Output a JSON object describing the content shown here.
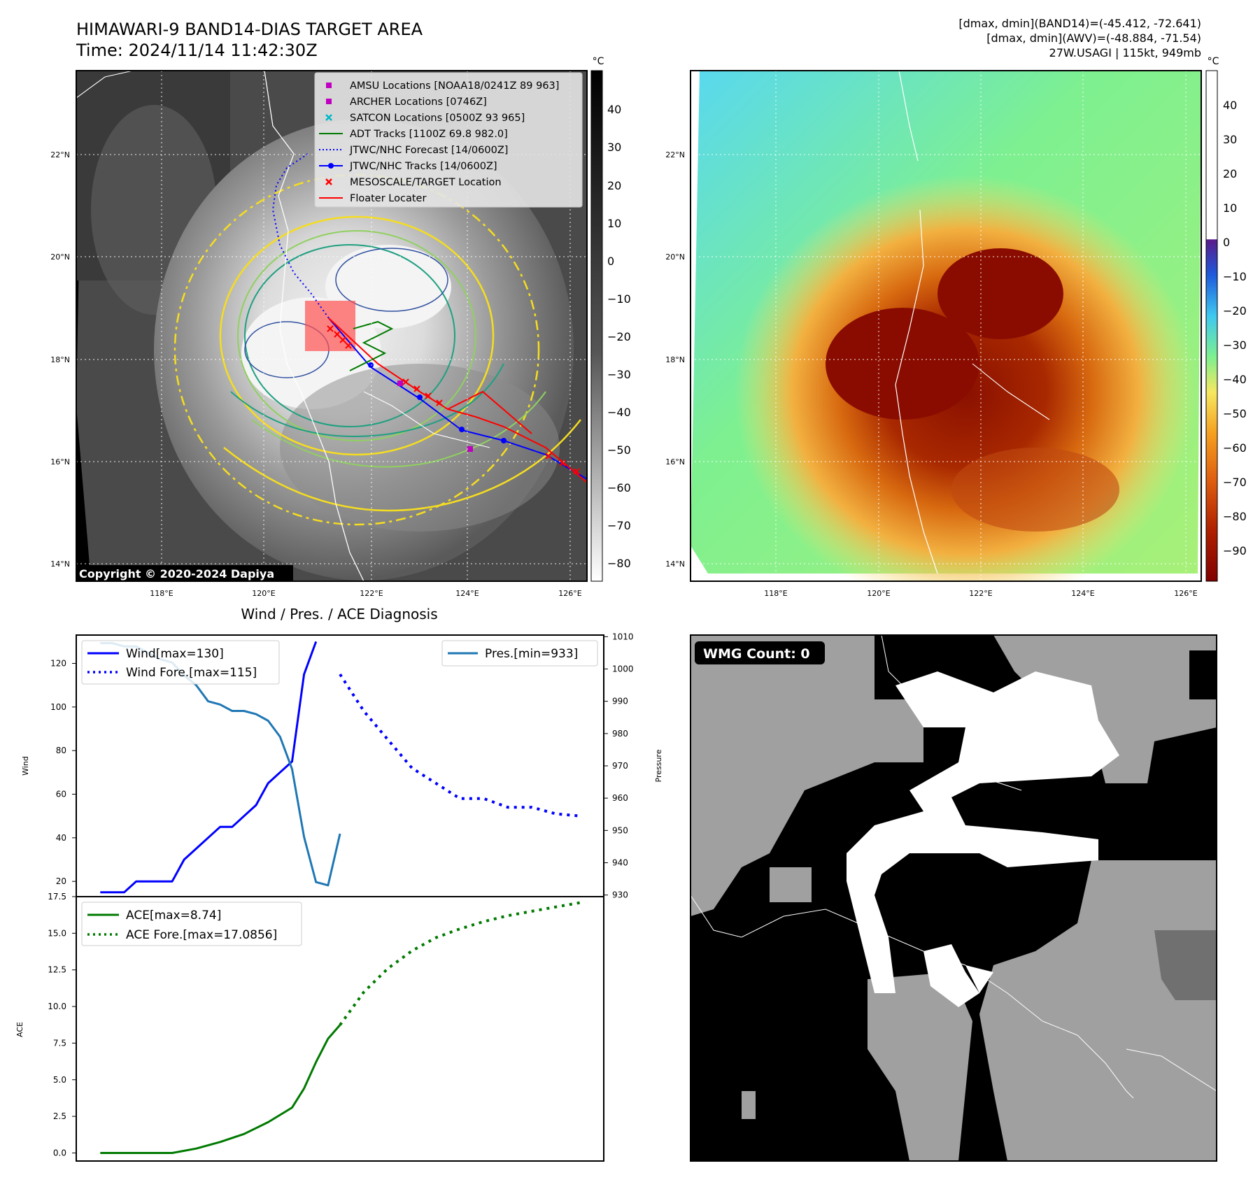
{
  "header": {
    "title": "HIMAWARI-9 BAND14-DIAS TARGET AREA",
    "time": "Time: 2024/11/14 11:42:30Z",
    "stats_line1": "[dmax, dmin](BAND14)=(-45.412, -72.641)",
    "stats_line2": "[dmax, dmin](AWV)=(-48.884, -71.54)",
    "stats_line3": "27W.USAGI | 115kt, 949mb"
  },
  "map_panel": {
    "copyright": "Copyright © 2020-2024 Dapiya",
    "lat_labels": [
      "22°N",
      "20°N",
      "18°N",
      "16°N",
      "14°N"
    ],
    "lon_labels": [
      "118°E",
      "120°E",
      "122°E",
      "124°E",
      "126°E"
    ],
    "legend": [
      {
        "label": "AMSU Locations [NOAA18/0241Z 89 963]",
        "color": "#c000c0",
        "kind": "square"
      },
      {
        "label": "ARCHER Locations [0746Z]",
        "color": "#c000c0",
        "kind": "square"
      },
      {
        "label": "SATCON Locations [0500Z 93 965]",
        "color": "#00b8c8",
        "kind": "x"
      },
      {
        "label": "ADT Tracks [1100Z 69.8 982.0]",
        "color": "#007a00",
        "kind": "line"
      },
      {
        "label": "JTWC/NHC Forecast [14/0600Z]",
        "color": "#0000ff",
        "kind": "dotted"
      },
      {
        "label": "JTWC/NHC Tracks [14/0600Z]",
        "color": "#0000ff",
        "kind": "linedot"
      },
      {
        "label": "MESOSCALE/TARGET Location",
        "color": "#ff0000",
        "kind": "x"
      },
      {
        "label": "Floater Locater",
        "color": "#ff0000",
        "kind": "line"
      }
    ],
    "colorbar_unit": "°C",
    "colorbar_ticks": [
      "40",
      "30",
      "20",
      "10",
      "0",
      "−10",
      "−20",
      "−30",
      "−40",
      "−50",
      "−60",
      "−70",
      "−80"
    ]
  },
  "awv_panel": {
    "colorbar_unit": "°C",
    "colorbar_ticks": [
      "40",
      "30",
      "20",
      "10",
      "0",
      "−10",
      "−20",
      "−30",
      "−40",
      "−50",
      "−60",
      "−70",
      "−80",
      "−90"
    ],
    "lat_labels": [
      "22°N",
      "20°N",
      "18°N",
      "16°N",
      "14°N"
    ],
    "lon_labels": [
      "118°E",
      "120°E",
      "122°E",
      "124°E",
      "126°E"
    ]
  },
  "wmg_panel": {
    "label": "WMG Count: 0"
  },
  "chart_data": [
    {
      "type": "line",
      "title": "Wind / Pres. / ACE Diagnosis",
      "ylabel": "Wind",
      "y2label": "Pressure",
      "ylim": [
        13,
        133
      ],
      "y2lim": [
        929.5,
        1010.5
      ],
      "yticks": [
        "20",
        "40",
        "60",
        "80",
        "100",
        "120"
      ],
      "y2ticks": [
        "930",
        "940",
        "950",
        "960",
        "970",
        "980",
        "990",
        "1000",
        "1010"
      ],
      "xlim": [
        -2,
        42
      ],
      "series": [
        {
          "name": "Wind[max=130]",
          "style": "solid",
          "color": "#0000ff",
          "axis": "left",
          "x": [
            0,
            1,
            2,
            3,
            4,
            5,
            6,
            7,
            8,
            9,
            10,
            11,
            12,
            13,
            14,
            15,
            16,
            17,
            18
          ],
          "y": [
            15,
            15,
            15,
            20,
            20,
            20,
            20,
            30,
            35,
            40,
            45,
            45,
            50,
            55,
            65,
            70,
            75,
            115,
            130
          ]
        },
        {
          "name": "Wind Fore.[max=115]",
          "style": "dotted",
          "color": "#0000ff",
          "axis": "left",
          "x": [
            20,
            22,
            24,
            26,
            28,
            30,
            32,
            34,
            36,
            38,
            40
          ],
          "y": [
            115,
            98,
            85,
            72,
            65,
            58,
            58,
            54,
            54,
            51,
            50
          ]
        },
        {
          "name": "Pres.[min=933]",
          "style": "solid",
          "color": "#1f77b4",
          "axis": "right",
          "x": [
            0,
            1,
            2,
            3,
            4,
            5,
            6,
            7,
            8,
            9,
            10,
            11,
            12,
            13,
            14,
            15,
            16,
            17,
            18,
            19,
            20
          ],
          "y": [
            1008,
            1008,
            1007,
            1007,
            1005,
            1003,
            1002,
            998,
            995,
            990,
            989,
            987,
            987,
            986,
            984,
            979,
            969,
            948,
            934,
            933,
            949
          ]
        }
      ],
      "legend_left": [
        "Wind[max=130]",
        "Wind Fore.[max=115]"
      ],
      "legend_right": [
        "Pres.[min=933]"
      ]
    },
    {
      "type": "line",
      "ylabel": "ACE",
      "ylim": [
        -0.55,
        17.5
      ],
      "yticks": [
        "0.0",
        "2.5",
        "5.0",
        "7.5",
        "10.0",
        "12.5",
        "15.0",
        "17.5"
      ],
      "xlim": [
        -2,
        42
      ],
      "series": [
        {
          "name": "ACE[max=8.74]",
          "style": "solid",
          "color": "#007a00",
          "x": [
            0,
            2,
            4,
            6,
            8,
            10,
            12,
            14,
            16,
            17,
            18,
            19,
            20
          ],
          "y": [
            0,
            0,
            0,
            0,
            0.3,
            0.75,
            1.3,
            2.1,
            3.1,
            4.4,
            6.2,
            7.8,
            8.74
          ]
        },
        {
          "name": "ACE Fore.[max=17.0856]",
          "style": "dotted",
          "color": "#007a00",
          "x": [
            20,
            22,
            24,
            26,
            28,
            30,
            32,
            34,
            36,
            38,
            40
          ],
          "y": [
            8.74,
            11.0,
            12.6,
            13.8,
            14.7,
            15.3,
            15.8,
            16.2,
            16.5,
            16.8,
            17.0856
          ]
        }
      ],
      "legend": [
        "ACE[max=8.74]",
        "ACE Fore.[max=17.0856]"
      ]
    }
  ]
}
